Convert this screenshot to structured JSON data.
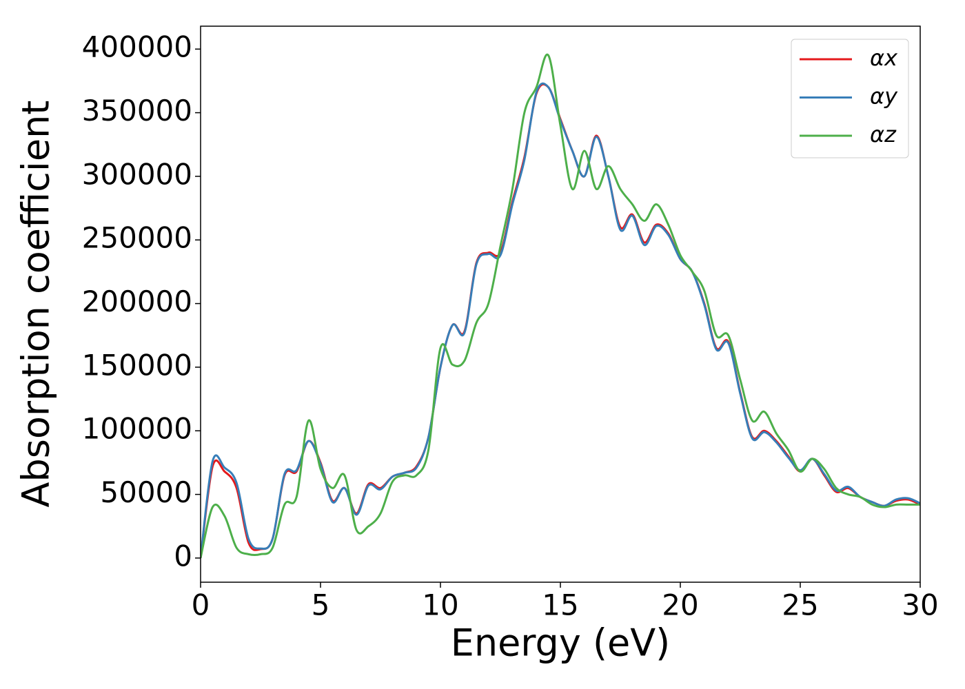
{
  "chart_data": {
    "type": "line",
    "xlabel": "Energy (eV)",
    "ylabel": "Absorption coefficient",
    "x": [
      0,
      0.5,
      1,
      1.5,
      2,
      2.5,
      3,
      3.5,
      4,
      4.5,
      5,
      5.5,
      6,
      6.5,
      7,
      7.5,
      8,
      8.5,
      9,
      9.5,
      10,
      10.5,
      11,
      11.5,
      12,
      12.5,
      13,
      13.5,
      14,
      14.5,
      15,
      15.5,
      16,
      16.5,
      17,
      17.5,
      18,
      18.5,
      19,
      19.5,
      20,
      20.5,
      21,
      21.5,
      22,
      22.5,
      23,
      23.5,
      24,
      24.5,
      25,
      25.5,
      26,
      26.5,
      27,
      27.5,
      28,
      28.5,
      29,
      29.5,
      30
    ],
    "series": [
      {
        "name": "αx",
        "color": "#e41a1c",
        "values": [
          0,
          72000,
          68000,
          55000,
          12000,
          7000,
          15000,
          65000,
          68000,
          92000,
          75000,
          45000,
          55000,
          35000,
          58000,
          55000,
          64000,
          67000,
          72000,
          95000,
          150000,
          183000,
          178000,
          232000,
          240000,
          240000,
          280000,
          315000,
          365000,
          370000,
          345000,
          320000,
          300000,
          332000,
          300000,
          260000,
          270000,
          248000,
          262000,
          255000,
          235000,
          225000,
          200000,
          165000,
          170000,
          130000,
          95000,
          100000,
          92000,
          80000,
          68000,
          78000,
          65000,
          52000,
          55000,
          48000,
          44000,
          41000,
          45000,
          46000,
          42000
        ]
      },
      {
        "name": "αy",
        "color": "#377eb8",
        "values": [
          0,
          76000,
          71000,
          59000,
          15000,
          7500,
          15000,
          66000,
          69000,
          92000,
          74000,
          44000,
          55000,
          34000,
          57000,
          54000,
          64000,
          67000,
          71000,
          95000,
          150000,
          183000,
          177000,
          231000,
          239000,
          238000,
          278000,
          313000,
          366000,
          370000,
          344000,
          320000,
          300000,
          331000,
          300000,
          258000,
          269000,
          246000,
          261000,
          254000,
          235000,
          225000,
          199000,
          164000,
          169000,
          129000,
          94000,
          99000,
          91000,
          79000,
          69000,
          78000,
          66000,
          53000,
          56000,
          48000,
          44000,
          41000,
          46000,
          47000,
          43000
        ]
      },
      {
        "name": "αz",
        "color": "#4daf4a",
        "values": [
          0,
          40000,
          33000,
          8000,
          3000,
          3000,
          8000,
          42000,
          48000,
          108000,
          70000,
          55000,
          65000,
          22000,
          25000,
          35000,
          60000,
          65000,
          65000,
          85000,
          165000,
          152000,
          155000,
          185000,
          200000,
          245000,
          290000,
          350000,
          370000,
          395000,
          340000,
          290000,
          320000,
          290000,
          308000,
          290000,
          278000,
          265000,
          278000,
          262000,
          238000,
          225000,
          210000,
          175000,
          175000,
          140000,
          108000,
          115000,
          98000,
          85000,
          68000,
          78000,
          70000,
          55000,
          50000,
          48000,
          42000,
          40000,
          42000,
          42000,
          42000
        ]
      }
    ],
    "xlim": [
      0,
      30
    ],
    "xticks": [
      0,
      5,
      10,
      15,
      20,
      25,
      30
    ],
    "ylim": [
      -19000,
      418000
    ],
    "yticks": [
      0,
      50000,
      100000,
      150000,
      200000,
      250000,
      300000,
      350000,
      400000
    ],
    "grid": false,
    "legend": "upper right"
  }
}
